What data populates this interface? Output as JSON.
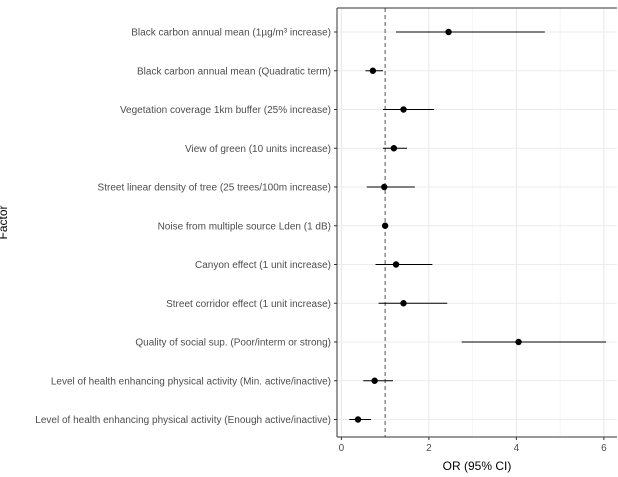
{
  "chart_data": {
    "type": "forest",
    "xlabel": "OR (95% CI)",
    "ylabel": "Factor",
    "xlim": [
      -0.1,
      6.3
    ],
    "xticks": [
      0,
      2,
      4,
      6
    ],
    "reference_line": 1,
    "grid": true,
    "rows": [
      {
        "label": "Black carbon annual mean (1µg/m³ increase)",
        "or": 2.45,
        "lower": 1.25,
        "upper": 4.65
      },
      {
        "label": "Black carbon annual mean (Quadratic term)",
        "or": 0.72,
        "lower": 0.55,
        "upper": 0.95
      },
      {
        "label": "Vegetation coverage 1km buffer (25% increase)",
        "or": 1.42,
        "lower": 0.95,
        "upper": 2.12
      },
      {
        "label": "View of green (10 units increase)",
        "or": 1.2,
        "lower": 0.95,
        "upper": 1.5
      },
      {
        "label": "Street linear density of tree (25 trees/100m increase)",
        "or": 0.98,
        "lower": 0.58,
        "upper": 1.68
      },
      {
        "label": "Noise from multiple source Lden (1 dB)",
        "or": 1.0,
        "lower": 0.96,
        "upper": 1.04
      },
      {
        "label": "Canyon effect (1 unit increase)",
        "or": 1.25,
        "lower": 0.78,
        "upper": 2.08
      },
      {
        "label": "Street corridor effect (1 unit increase)",
        "or": 1.42,
        "lower": 0.85,
        "upper": 2.42
      },
      {
        "label": "Quality of social sup. (Poor/interm or strong)",
        "or": 4.05,
        "lower": 2.75,
        "upper": 6.05
      },
      {
        "label": "Level of health enhancing physical activity (Min. active/inactive)",
        "or": 0.76,
        "lower": 0.5,
        "upper": 1.18
      },
      {
        "label": "Level of health enhancing physical activity (Enough active/inactive)",
        "or": 0.38,
        "lower": 0.18,
        "upper": 0.68
      }
    ]
  }
}
